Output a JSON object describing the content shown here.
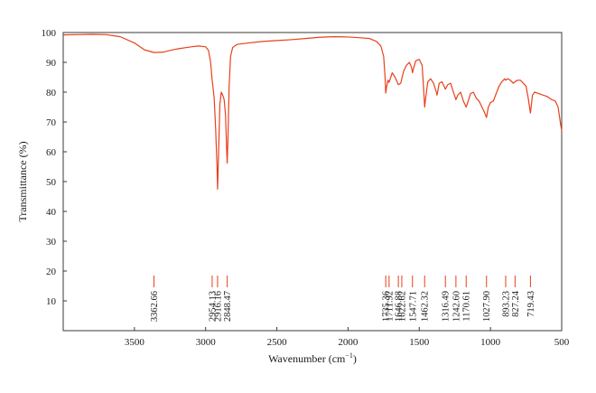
{
  "chart_data": {
    "type": "line",
    "xlabel": "Wavenumber (cm",
    "xlabel_superscript": "−1",
    "xlabel_suffix": ")",
    "ylabel": "Transmittance (%)",
    "xlim": [
      4000,
      500
    ],
    "ylim": [
      0,
      100
    ],
    "x_reversed": true,
    "x_ticks": [
      3500,
      3000,
      2500,
      2000,
      1500,
      1000,
      500
    ],
    "y_ticks": [
      10,
      20,
      30,
      40,
      50,
      60,
      70,
      80,
      90,
      100
    ],
    "line_color": "#e8401c",
    "grid": false,
    "series": [
      {
        "points": [
          [
            4000,
            99.2
          ],
          [
            3900,
            99.3
          ],
          [
            3800,
            99.4
          ],
          [
            3700,
            99.3
          ],
          [
            3600,
            98.6
          ],
          [
            3500,
            96.5
          ],
          [
            3430,
            94.2
          ],
          [
            3362.66,
            93.3
          ],
          [
            3300,
            93.4
          ],
          [
            3250,
            94.0
          ],
          [
            3200,
            94.5
          ],
          [
            3100,
            95.2
          ],
          [
            3050,
            95.5
          ],
          [
            3000,
            95.2
          ],
          [
            2980,
            94.0
          ],
          [
            2965,
            90.0
          ],
          [
            2954.13,
            84.0
          ],
          [
            2940,
            78.0
          ],
          [
            2930,
            68.0
          ],
          [
            2920,
            55.0
          ],
          [
            2916.16,
            47.5
          ],
          [
            2910,
            58.0
          ],
          [
            2900,
            76.0
          ],
          [
            2890,
            80.0
          ],
          [
            2880,
            79.0
          ],
          [
            2870,
            77.5
          ],
          [
            2860,
            72.0
          ],
          [
            2852,
            60.0
          ],
          [
            2848.47,
            56.2
          ],
          [
            2843,
            65.0
          ],
          [
            2835,
            82.0
          ],
          [
            2825,
            92.0
          ],
          [
            2810,
            95.0
          ],
          [
            2780,
            96.0
          ],
          [
            2700,
            96.5
          ],
          [
            2600,
            97.0
          ],
          [
            2500,
            97.3
          ],
          [
            2400,
            97.6
          ],
          [
            2300,
            98.0
          ],
          [
            2200,
            98.4
          ],
          [
            2100,
            98.6
          ],
          [
            2000,
            98.5
          ],
          [
            1900,
            98.2
          ],
          [
            1850,
            98.0
          ],
          [
            1800,
            97.0
          ],
          [
            1770,
            95.5
          ],
          [
            1750,
            92.0
          ],
          [
            1740,
            85.0
          ],
          [
            1735.36,
            79.7
          ],
          [
            1730,
            81.5
          ],
          [
            1720,
            84.0
          ],
          [
            1711.92,
            83.3
          ],
          [
            1700,
            85.0
          ],
          [
            1690,
            86.5
          ],
          [
            1670,
            85.0
          ],
          [
            1646.88,
            82.5
          ],
          [
            1630,
            83.0
          ],
          [
            1622.62,
            84.5
          ],
          [
            1610,
            87.0
          ],
          [
            1590,
            89.0
          ],
          [
            1570,
            90.0
          ],
          [
            1555,
            88.5
          ],
          [
            1547.71,
            86.5
          ],
          [
            1540,
            88.0
          ],
          [
            1525,
            90.5
          ],
          [
            1500,
            91.0
          ],
          [
            1480,
            89.0
          ],
          [
            1468,
            80.0
          ],
          [
            1462.32,
            75.0
          ],
          [
            1455,
            78.0
          ],
          [
            1440,
            83.5
          ],
          [
            1420,
            84.5
          ],
          [
            1400,
            83.0
          ],
          [
            1380,
            80.0
          ],
          [
            1375,
            79.0
          ],
          [
            1360,
            83.0
          ],
          [
            1340,
            83.5
          ],
          [
            1316.49,
            81.0
          ],
          [
            1300,
            82.5
          ],
          [
            1280,
            83.0
          ],
          [
            1260,
            80.0
          ],
          [
            1242.6,
            77.5
          ],
          [
            1230,
            79.0
          ],
          [
            1210,
            80.0
          ],
          [
            1190,
            77.0
          ],
          [
            1170.61,
            75.0
          ],
          [
            1160,
            76.5
          ],
          [
            1140,
            79.5
          ],
          [
            1120,
            80.0
          ],
          [
            1100,
            78.0
          ],
          [
            1080,
            77.0
          ],
          [
            1060,
            75.0
          ],
          [
            1040,
            73.0
          ],
          [
            1027.9,
            71.5
          ],
          [
            1015,
            75.0
          ],
          [
            1000,
            76.5
          ],
          [
            980,
            77.0
          ],
          [
            960,
            79.5
          ],
          [
            940,
            82.0
          ],
          [
            920,
            83.5
          ],
          [
            900,
            84.5
          ],
          [
            893.23,
            84.0
          ],
          [
            880,
            84.5
          ],
          [
            860,
            84.0
          ],
          [
            840,
            83.0
          ],
          [
            827.24,
            83.5
          ],
          [
            810,
            84.0
          ],
          [
            790,
            84.0
          ],
          [
            770,
            83.0
          ],
          [
            750,
            82.0
          ],
          [
            735,
            78.0
          ],
          [
            719.43,
            73.0
          ],
          [
            705,
            79.0
          ],
          [
            690,
            80.0
          ],
          [
            660,
            79.5
          ],
          [
            630,
            79.0
          ],
          [
            600,
            78.5
          ],
          [
            570,
            77.5
          ],
          [
            545,
            77.0
          ],
          [
            525,
            75.0
          ],
          [
            510,
            70.0
          ],
          [
            500,
            67.0
          ]
        ]
      }
    ],
    "peaks": [
      {
        "x": 3362.66,
        "label": "3362.66"
      },
      {
        "x": 2954.13,
        "label": "2954.13"
      },
      {
        "x": 2916.16,
        "label": "2916.16"
      },
      {
        "x": 2848.47,
        "label": "2848.47"
      },
      {
        "x": 1735.36,
        "label": "1735.36"
      },
      {
        "x": 1711.92,
        "label": "1711.92"
      },
      {
        "x": 1646.88,
        "label": "1646.88"
      },
      {
        "x": 1622.62,
        "label": "1622.62"
      },
      {
        "x": 1547.71,
        "label": "1547.71"
      },
      {
        "x": 1462.32,
        "label": "1462.32"
      },
      {
        "x": 1316.49,
        "label": "1316.49"
      },
      {
        "x": 1242.6,
        "label": "1242.60"
      },
      {
        "x": 1170.61,
        "label": "1170.61"
      },
      {
        "x": 1027.9,
        "label": "1027.90"
      },
      {
        "x": 893.23,
        "label": "893.23"
      },
      {
        "x": 827.24,
        "label": "827.24"
      },
      {
        "x": 719.43,
        "label": "719.43"
      }
    ]
  }
}
